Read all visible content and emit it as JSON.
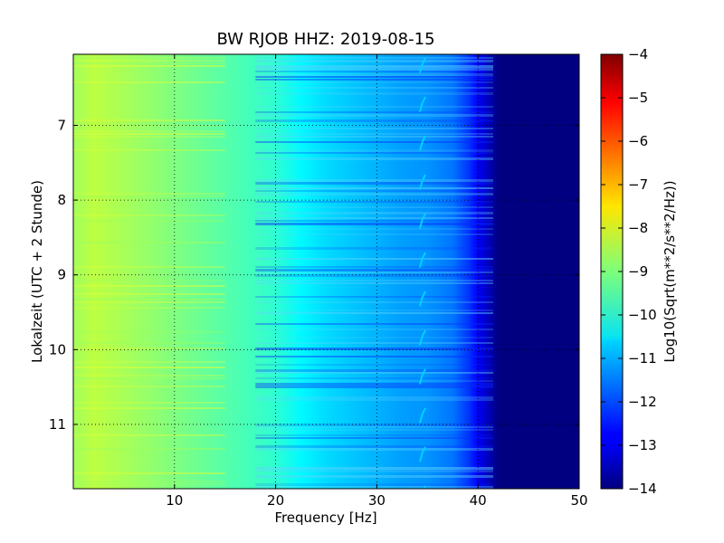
{
  "chart_data": {
    "type": "heatmap",
    "title": "BW RJOB HHZ: 2019-08-15",
    "xlabel": "Frequency [Hz]",
    "ylabel": "Lokalzeit (UTC + 2 Stunde)",
    "xlim": [
      0,
      50
    ],
    "ylim": [
      11.86,
      6.05
    ],
    "y_inverted": true,
    "x_ticks": [
      10,
      20,
      30,
      40,
      50
    ],
    "y_ticks": [
      7,
      8,
      9,
      10,
      11
    ],
    "grid": true,
    "colormap": "jet",
    "colorbar": {
      "label": "Log10(Sqrt(m**2/s**2/Hz))",
      "range": [
        -14,
        -4
      ],
      "ticks": [
        -4,
        -5,
        -6,
        -7,
        -8,
        -9,
        -10,
        -11,
        -12,
        -13,
        -14
      ]
    },
    "frequency_hz": [
      0.5,
      2,
      5,
      10,
      15,
      20,
      22.5,
      25,
      27.5,
      30,
      32.5,
      35,
      37.5,
      39,
      40,
      41,
      42,
      45,
      50
    ],
    "psd_log10": [
      -8.6,
      -8.4,
      -8.6,
      -9.0,
      -9.4,
      -9.8,
      -10.3,
      -10.6,
      -10.8,
      -11.0,
      -11.2,
      -11.3,
      -11.6,
      -12.2,
      -12.8,
      -13.4,
      -14.0,
      -14.0,
      -14.0
    ],
    "tonal_line": {
      "frequency_hz": 34.5,
      "psd_log10": -10.7,
      "note": "periodic narrow-band feature"
    }
  }
}
